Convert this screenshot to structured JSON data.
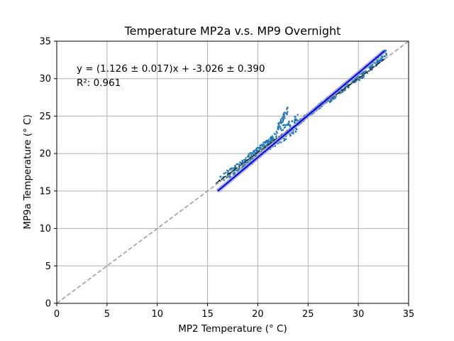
{
  "chart_data": {
    "type": "scatter",
    "title": "Temperature MP2a v.s. MP9 Overnight",
    "xlabel": "MP2 Temperature (° C)",
    "ylabel": "MP9a Temperature (° C)",
    "xlim": [
      0,
      35
    ],
    "ylim": [
      0,
      35
    ],
    "xticks": [
      0,
      5,
      10,
      15,
      20,
      25,
      30,
      35
    ],
    "yticks": [
      0,
      5,
      10,
      15,
      20,
      25,
      30,
      35
    ],
    "grid": true,
    "annotations": {
      "equation": "y = (1.126 ± 0.017)x + -3.026 ± 0.390",
      "r_squared": "R²: 0.961"
    },
    "colors": {
      "points": "#1f77b4",
      "fit": "#0000ff",
      "fit_band": "#9aa0b8",
      "reference": "#a0a0a0",
      "trend": "#000000"
    },
    "fit_line": {
      "slope": 1.126,
      "intercept": -3.026,
      "x_range": [
        16,
        32.6
      ]
    },
    "reference_line": {
      "slope": 1,
      "intercept": 0
    },
    "trend_line": {
      "x": [
        15.8,
        32.6
      ],
      "y": [
        16.0,
        32.6
      ]
    },
    "points_clusters": [
      {
        "x_range": [
          16.0,
          17.5
        ],
        "slope": 1.0,
        "offset": 0.3,
        "spread": 0.5,
        "count": 30
      },
      {
        "x_range": [
          17.0,
          19.5
        ],
        "slope": 0.9,
        "offset": 1.8,
        "spread": 0.7,
        "count": 90
      },
      {
        "x_range": [
          19.0,
          21.5
        ],
        "slope": 1.05,
        "offset": -0.6,
        "spread": 0.5,
        "count": 110
      },
      {
        "x_range": [
          21.0,
          24.0
        ],
        "slope": 1.0,
        "offset": 0.2,
        "spread": 1.1,
        "count": 110
      },
      {
        "x_range": [
          22.0,
          23.0
        ],
        "slope": 2.5,
        "offset": -31.5,
        "spread": 0.5,
        "count": 40
      },
      {
        "x_range": [
          24.0,
          27.0
        ],
        "slope": 1.07,
        "offset": -1.6,
        "spread": 0.35,
        "count": 100
      },
      {
        "x_range": [
          27.0,
          30.0
        ],
        "slope": 1.07,
        "offset": -1.9,
        "spread": 0.35,
        "count": 100
      },
      {
        "x_range": [
          30.0,
          32.8
        ],
        "slope": 1.2,
        "offset": -5.8,
        "spread": 0.6,
        "count": 110
      }
    ]
  }
}
